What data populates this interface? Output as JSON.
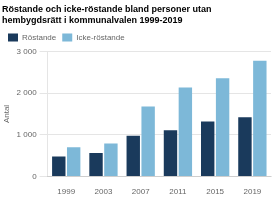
{
  "chart_data": {
    "type": "bar",
    "title": [
      "Röstande och icke-röstande bland personer utan",
      "hembygdsrätt i kommunalvalen 1999-2019"
    ],
    "ylabel": "Antal",
    "categories": [
      "1999",
      "2003",
      "2007",
      "2011",
      "2015",
      "2019"
    ],
    "series": [
      {
        "name": "Röstande",
        "color": "#1a3a5c",
        "values": [
          480,
          560,
          980,
          1110,
          1320,
          1420
        ]
      },
      {
        "name": "Icke-röstande",
        "color": "#7db8d8",
        "values": [
          700,
          790,
          1680,
          2140,
          2360,
          2780
        ]
      }
    ],
    "ylim": [
      0,
      3000
    ],
    "yticks": [
      0,
      {
        "value": 1000,
        "label": "1 000"
      },
      {
        "value": 2000,
        "label": "2 000"
      },
      {
        "value": 3000,
        "label": "3 000"
      }
    ],
    "grid": true,
    "legend": "upper left"
  }
}
